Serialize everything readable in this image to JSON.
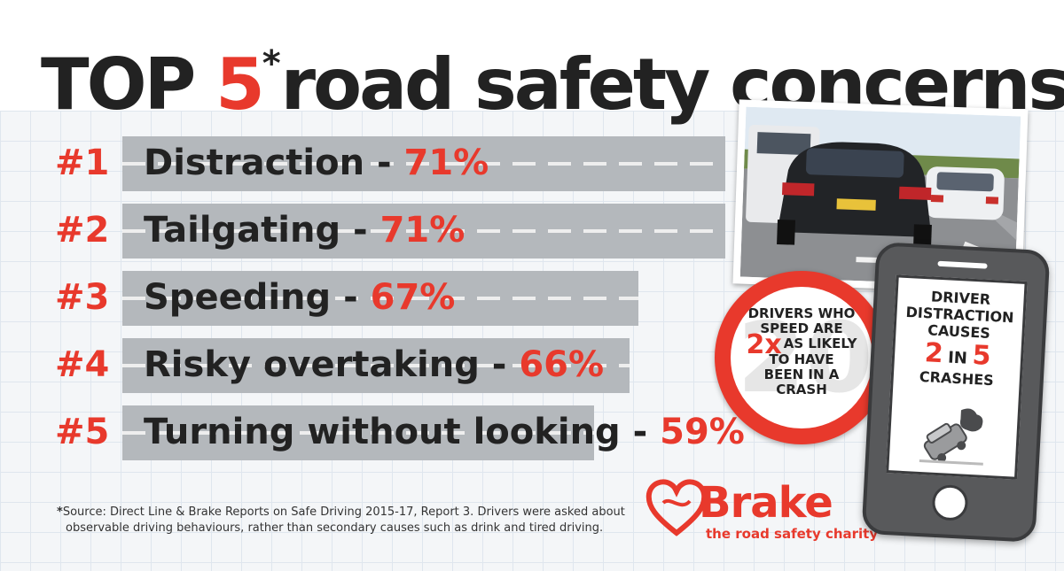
{
  "title": {
    "prefix": "TOP ",
    "number": "5",
    "star": "*",
    "suffix": "road safety concerns"
  },
  "chart_data": {
    "type": "bar",
    "orientation": "horizontal",
    "title": "TOP 5* road safety concerns",
    "categories": [
      "Distraction",
      "Tailgating",
      "Speeding",
      "Risky overtaking",
      "Turning without looking"
    ],
    "ranks": [
      "#1",
      "#2",
      "#3",
      "#4",
      "#5"
    ],
    "values": [
      71,
      71,
      67,
      66,
      59
    ],
    "value_labels": [
      "71%",
      "71%",
      "67%",
      "66%",
      "59%"
    ],
    "separator": " - ",
    "units": "%",
    "grid": false,
    "legend": "none"
  },
  "footnote": {
    "star": "*",
    "line1": "Source: Direct Line & Brake Reports on Safe Driving 2015-17, Report 3. Drivers were asked about",
    "line2": "observable driving behaviours, rather than secondary causes such as drink and tired driving."
  },
  "speed_sign": {
    "ghost": "20",
    "line1": "DRIVERS WHO",
    "line2": "SPEED ARE",
    "multiplier": "2x",
    "line3": "AS LIKELY",
    "line4": "TO HAVE",
    "line5": "BEEN IN A",
    "line6": "CRASH"
  },
  "phone": {
    "line1": "DRIVER",
    "line2": "DISTRACTION",
    "line3": "CAUSES",
    "num1": "2",
    "in_word": "IN",
    "num2": "5",
    "line4": "CRASHES"
  },
  "logo": {
    "name": "Brake",
    "tagline": "the road safety charity"
  },
  "colors": {
    "accent_red": "#e8392c",
    "bar_grey": "#b4b8bc",
    "text_dark": "#222222",
    "phone_grey": "#58595b"
  }
}
